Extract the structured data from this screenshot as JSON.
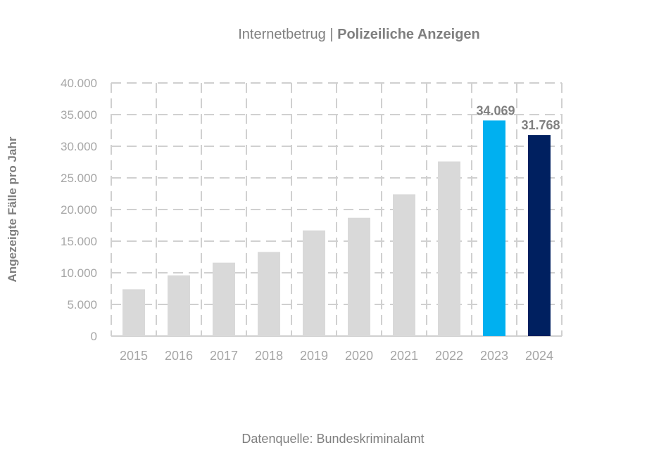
{
  "chart_data": {
    "type": "bar",
    "title_light": "Internetbetrug |",
    "title_bold": "Polizeiliche Anzeigen",
    "ylabel": "Angezeigte Fälle pro Jahr",
    "xlabel": "",
    "ylim": [
      0,
      40000
    ],
    "yticks": [
      0,
      5000,
      10000,
      15000,
      20000,
      25000,
      30000,
      35000,
      40000
    ],
    "ytick_labels": [
      "0",
      "5.000",
      "10.000",
      "15.000",
      "20.000",
      "25.000",
      "30.000",
      "35.000",
      "40.000"
    ],
    "grid": true,
    "categories": [
      "2015",
      "2016",
      "2017",
      "2018",
      "2019",
      "2020",
      "2021",
      "2022",
      "2023",
      "2024"
    ],
    "values": [
      7400,
      9600,
      11600,
      13300,
      16700,
      18700,
      22400,
      27600,
      34069,
      31768
    ],
    "data_labels": [
      "",
      "",
      "",
      "",
      "",
      "",
      "",
      "",
      "34.069",
      "31.768"
    ],
    "colors": [
      "#d9d9d9",
      "#d9d9d9",
      "#d9d9d9",
      "#d9d9d9",
      "#d9d9d9",
      "#d9d9d9",
      "#d9d9d9",
      "#d9d9d9",
      "#00b0f0",
      "#002060"
    ],
    "source": "Datenquelle: Bundeskriminalamt"
  }
}
